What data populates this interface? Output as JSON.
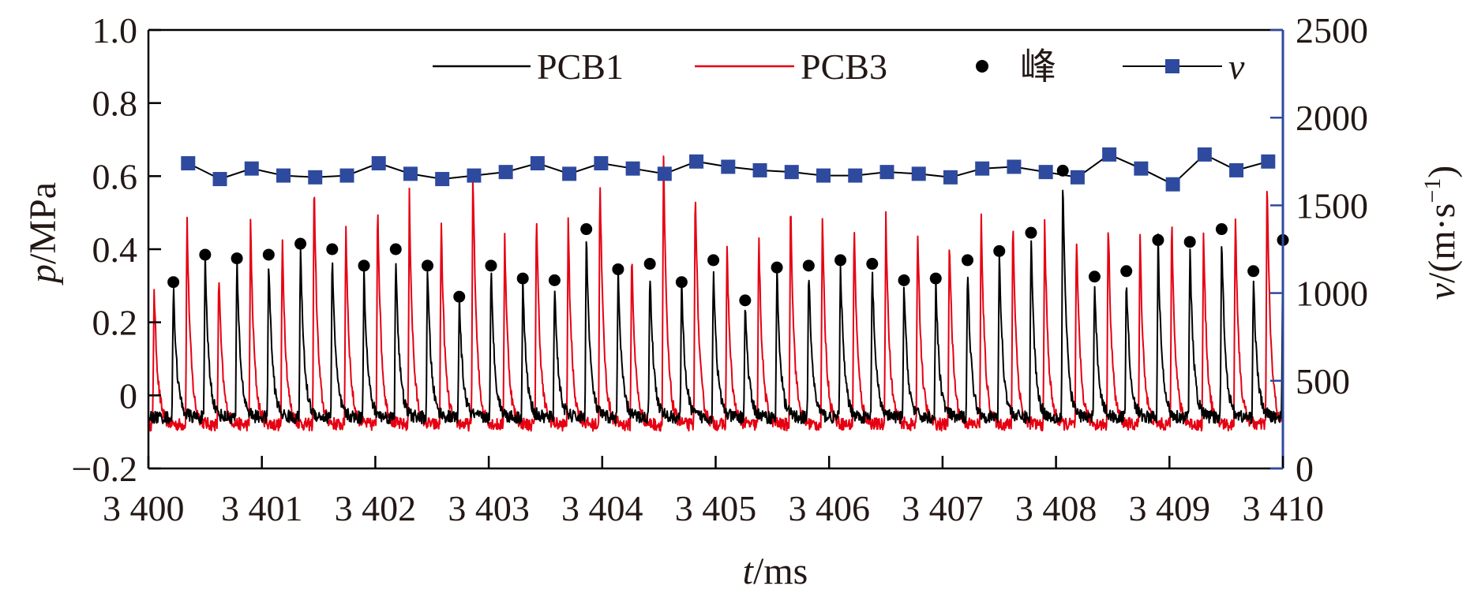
{
  "chart_data": {
    "type": "line",
    "x_axis": {
      "label_var": "t",
      "label_unit": "/ms",
      "range": [
        3400,
        3410
      ],
      "ticks": [
        3400,
        3401,
        3402,
        3403,
        3404,
        3405,
        3406,
        3407,
        3408,
        3409,
        3410
      ],
      "tick_labels": [
        "3 400",
        "3 401",
        "3 402",
        "3 403",
        "3 404",
        "3 405",
        "3 406",
        "3 407",
        "3 408",
        "3 409",
        "3 410"
      ]
    },
    "y_axis_left": {
      "label_var": "p",
      "label_unit": "/MPa",
      "range": [
        -0.2,
        1.0
      ],
      "ticks": [
        -0.2,
        0,
        0.2,
        0.4,
        0.6,
        0.8,
        1.0
      ],
      "tick_labels": [
        "−0.2",
        "0",
        "0.2",
        "0.4",
        "0.6",
        "0.8",
        "1.0"
      ]
    },
    "y_axis_right": {
      "label_var": "v",
      "label_unit": "/(m·s",
      "label_sup": "−1",
      "label_close": ")",
      "range": [
        0,
        2500
      ],
      "ticks": [
        0,
        500,
        1000,
        1500,
        2000,
        2500
      ],
      "tick_labels": [
        "0",
        "500",
        "1000",
        "1500",
        "2000",
        "2500"
      ],
      "color": "#2e4a9e"
    },
    "legend": {
      "placement": "top-right",
      "entries": [
        "PCB1",
        "PCB3",
        "峰",
        "v"
      ]
    },
    "series": [
      {
        "name": "PCB1",
        "kind": "pulse-trace",
        "color": "#000000",
        "axis": "left",
        "baseline": -0.06,
        "peaks_x": [
          3400.22,
          3400.5,
          3400.78,
          3401.06,
          3401.34,
          3401.62,
          3401.9,
          3402.18,
          3402.46,
          3402.74,
          3403.02,
          3403.3,
          3403.58,
          3403.86,
          3404.14,
          3404.42,
          3404.7,
          3404.98,
          3405.26,
          3405.54,
          3405.82,
          3406.1,
          3406.38,
          3406.66,
          3406.94,
          3407.22,
          3407.5,
          3407.78,
          3408.06,
          3408.34,
          3408.62,
          3408.9,
          3409.18,
          3409.46,
          3409.74,
          3410.0
        ]
      },
      {
        "name": "PCB3",
        "kind": "pulse-trace",
        "color": "#e60012",
        "axis": "left",
        "baseline": -0.08,
        "peaks_x": [
          3400.05,
          3400.34,
          3400.62,
          3400.9,
          3401.18,
          3401.46,
          3401.74,
          3402.02,
          3402.3,
          3402.58,
          3402.86,
          3403.14,
          3403.42,
          3403.7,
          3403.98,
          3404.26,
          3404.54,
          3404.82,
          3405.1,
          3405.38,
          3405.66,
          3405.94,
          3406.22,
          3406.5,
          3406.78,
          3407.06,
          3407.34,
          3407.62,
          3407.9,
          3408.18,
          3408.46,
          3408.74,
          3409.02,
          3409.3,
          3409.58,
          3409.86
        ],
        "peaks_y": [
          0.3,
          0.5,
          0.35,
          0.48,
          0.45,
          0.6,
          0.48,
          0.55,
          0.55,
          0.5,
          0.64,
          0.45,
          0.52,
          0.48,
          0.62,
          0.4,
          0.67,
          0.6,
          0.42,
          0.45,
          0.55,
          0.5,
          0.48,
          0.5,
          0.48,
          0.45,
          0.5,
          0.5,
          0.48,
          0.45,
          0.5,
          0.45,
          0.5,
          0.45,
          0.52,
          0.6
        ]
      },
      {
        "name": "峰",
        "kind": "markers",
        "color": "#000000",
        "axis": "left",
        "x": [
          3400.22,
          3400.5,
          3400.78,
          3401.06,
          3401.34,
          3401.62,
          3401.9,
          3402.18,
          3402.46,
          3402.74,
          3403.02,
          3403.3,
          3403.58,
          3403.86,
          3404.14,
          3404.42,
          3404.7,
          3404.98,
          3405.26,
          3405.54,
          3405.82,
          3406.1,
          3406.38,
          3406.66,
          3406.94,
          3407.22,
          3407.5,
          3407.78,
          3408.06,
          3408.34,
          3408.62,
          3408.9,
          3409.18,
          3409.46,
          3409.74,
          3410.0
        ],
        "y": [
          0.31,
          0.385,
          0.375,
          0.385,
          0.415,
          0.4,
          0.355,
          0.4,
          0.355,
          0.27,
          0.355,
          0.32,
          0.315,
          0.455,
          0.345,
          0.36,
          0.31,
          0.37,
          0.26,
          0.35,
          0.355,
          0.37,
          0.36,
          0.315,
          0.32,
          0.37,
          0.395,
          0.445,
          0.615,
          0.325,
          0.34,
          0.425,
          0.42,
          0.455,
          0.34,
          0.425
        ]
      },
      {
        "name": "v",
        "kind": "line-markers",
        "color": "#2e4a9e",
        "axis": "right",
        "x": [
          3400.35,
          3400.63,
          3400.91,
          3401.19,
          3401.47,
          3401.75,
          3402.03,
          3402.31,
          3402.59,
          3402.87,
          3403.15,
          3403.43,
          3403.71,
          3403.99,
          3404.27,
          3404.55,
          3404.83,
          3405.11,
          3405.39,
          3405.67,
          3405.95,
          3406.23,
          3406.51,
          3406.79,
          3407.07,
          3407.35,
          3407.63,
          3407.91,
          3408.19,
          3408.47,
          3408.75,
          3409.03,
          3409.31,
          3409.59,
          3409.87
        ],
        "y": [
          1740,
          1650,
          1710,
          1670,
          1660,
          1670,
          1740,
          1680,
          1650,
          1670,
          1690,
          1740,
          1680,
          1740,
          1710,
          1680,
          1750,
          1720,
          1700,
          1690,
          1670,
          1670,
          1690,
          1680,
          1660,
          1710,
          1720,
          1690,
          1660,
          1790,
          1710,
          1620,
          1790,
          1700,
          1750
        ]
      }
    ]
  }
}
